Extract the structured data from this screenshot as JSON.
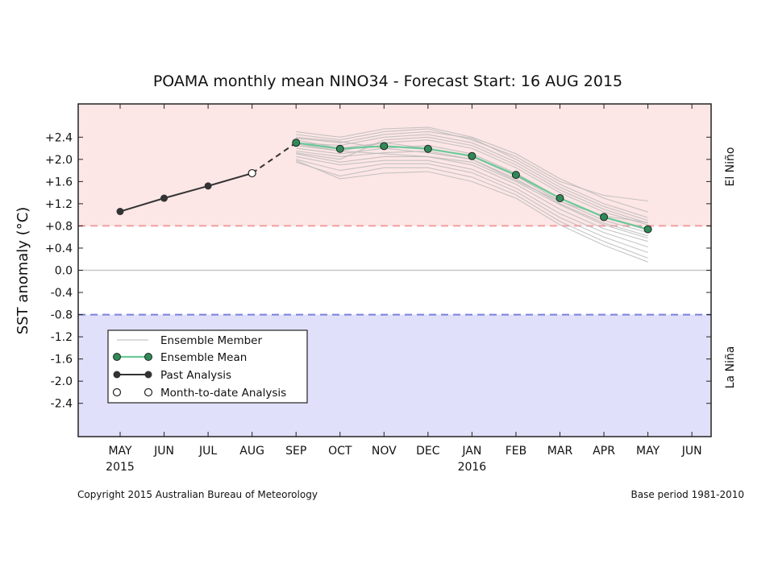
{
  "chart_data": {
    "type": "line",
    "title": "POAMA monthly mean NINO34 - Forecast Start: 16 AUG 2015",
    "ylabel": "SST anomaly (°C)",
    "xlabel": "",
    "ylim": [
      -3.0,
      3.0
    ],
    "x_categories": [
      "MAY",
      "JUN",
      "JUL",
      "AUG",
      "SEP",
      "OCT",
      "NOV",
      "DEC",
      "JAN",
      "FEB",
      "MAR",
      "APR",
      "MAY",
      "JUN"
    ],
    "year_labels": [
      {
        "index": 0,
        "label": "2015"
      },
      {
        "index": 8,
        "label": "2016"
      }
    ],
    "y_ticks": [
      2.4,
      2.0,
      1.6,
      1.2,
      0.8,
      0.4,
      0.0,
      -0.4,
      -0.8,
      -1.2,
      -1.6,
      -2.0,
      -2.4
    ],
    "y_tick_labels": [
      "+2.4",
      "+2.0",
      "+1.6",
      "+1.2",
      "+0.8",
      "+0.4",
      "0.0",
      "-0.4",
      "-0.8",
      "-1.2",
      "-1.6",
      "-2.0",
      "-2.4"
    ],
    "thresholds": {
      "el_nino": 0.8,
      "la_nina": -0.8
    },
    "regions": {
      "el_nino_label": "El Niño",
      "la_nina_label": "La Niña"
    },
    "colors": {
      "el_nino_fill": "#fde6e6",
      "la_nina_fill": "#e0e0fa",
      "el_nino_line": "#f2a0a0",
      "la_nina_line": "#7a80dd",
      "ensemble_mean": "#2e8b57",
      "ensemble_mean_line": "#6cc99a",
      "past_analysis": "#333333",
      "member": "#bbbbbb"
    },
    "series": [
      {
        "name": "Past Analysis",
        "x": [
          0,
          1,
          2,
          3
        ],
        "values": [
          1.06,
          1.3,
          1.52,
          1.75
        ]
      },
      {
        "name": "Month-to-date Analysis",
        "x": [
          3
        ],
        "values": [
          1.75
        ]
      },
      {
        "name": "Ensemble Mean",
        "x": [
          4,
          5,
          6,
          7,
          8,
          9,
          10,
          11,
          12
        ],
        "values": [
          2.3,
          2.19,
          2.24,
          2.19,
          2.06,
          1.72,
          1.3,
          0.96,
          0.74
        ]
      }
    ],
    "ensemble_members": [
      [
        2.38,
        2.3,
        2.45,
        2.5,
        2.38,
        2.0,
        1.55,
        1.2,
        0.95
      ],
      [
        2.3,
        2.25,
        2.4,
        2.45,
        2.3,
        1.95,
        1.5,
        1.15,
        0.9
      ],
      [
        2.25,
        2.15,
        2.3,
        2.35,
        2.2,
        1.85,
        1.4,
        1.05,
        0.82
      ],
      [
        2.2,
        2.1,
        2.2,
        2.25,
        2.1,
        1.75,
        1.3,
        0.95,
        0.72
      ],
      [
        2.15,
        2.05,
        2.12,
        2.15,
        2.0,
        1.65,
        1.2,
        0.85,
        0.62
      ],
      [
        2.1,
        1.95,
        2.05,
        2.05,
        1.9,
        1.55,
        1.1,
        0.75,
        0.52
      ],
      [
        2.05,
        1.9,
        1.98,
        1.98,
        1.82,
        1.48,
        1.02,
        0.68,
        0.42
      ],
      [
        2.0,
        1.8,
        1.92,
        1.92,
        1.76,
        1.42,
        0.95,
        0.6,
        0.32
      ],
      [
        1.95,
        1.7,
        1.85,
        1.85,
        1.68,
        1.36,
        0.88,
        0.52,
        0.22
      ],
      [
        1.98,
        1.65,
        1.75,
        1.78,
        1.6,
        1.3,
        0.82,
        0.45,
        0.15
      ],
      [
        2.5,
        2.4,
        2.55,
        2.58,
        2.4,
        2.1,
        1.65,
        1.3,
        1.05
      ],
      [
        2.45,
        2.35,
        2.5,
        2.55,
        2.35,
        2.05,
        1.6,
        1.35,
        1.25
      ],
      [
        2.35,
        2.2,
        2.3,
        2.2,
        2.05,
        1.7,
        1.25,
        0.9,
        0.68
      ],
      [
        2.28,
        2.15,
        2.1,
        2.05,
        1.95,
        1.6,
        1.18,
        0.82,
        0.58
      ],
      [
        2.4,
        2.32,
        2.2,
        2.12,
        2.0,
        1.62,
        1.24,
        0.98,
        0.86
      ],
      [
        2.12,
        2.0,
        2.35,
        2.4,
        2.25,
        1.9,
        1.45,
        1.1,
        0.85
      ]
    ],
    "legend": {
      "placement": "lower-left",
      "entries": [
        "Ensemble Member",
        "Ensemble Mean",
        "Past Analysis",
        "Month-to-date Analysis"
      ]
    },
    "footer_left": "Copyright 2015 Australian Bureau of Meteorology",
    "footer_right": "Base period 1981-2010"
  }
}
